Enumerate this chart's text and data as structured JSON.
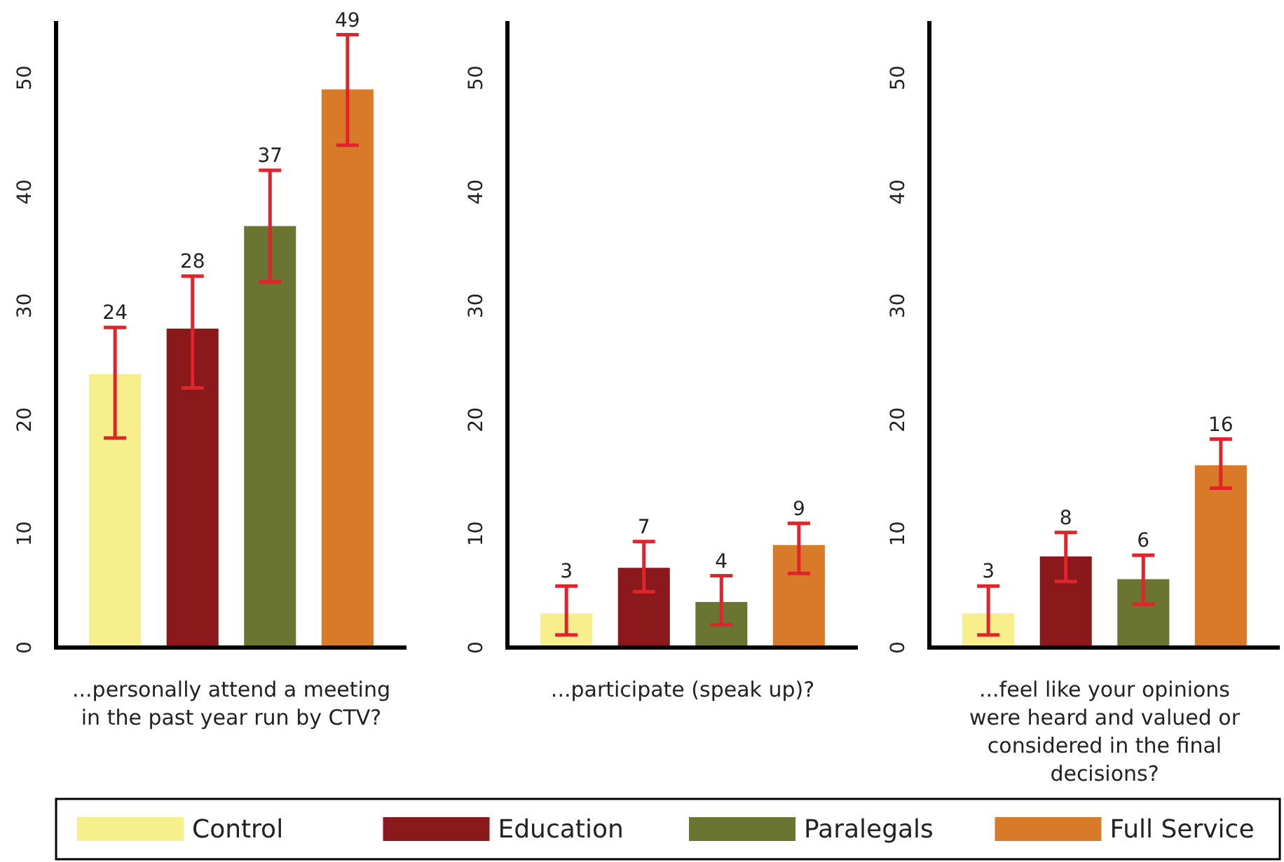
{
  "chart_data": [
    {
      "type": "bar",
      "xlabel": "...personally attend a meeting in the past year run by CTV?",
      "categories": [
        null
      ],
      "ylim": [
        0,
        55
      ],
      "yticks": [
        0,
        10,
        20,
        30,
        40,
        50
      ],
      "data_labels": true,
      "legend": "bottom",
      "series": [
        {
          "name": "Control",
          "color": "#f7ee8c",
          "values": [
            24
          ],
          "errors": [
            [
              18.4,
              28.1
            ]
          ]
        },
        {
          "name": "Education",
          "color": "#8b181b",
          "values": [
            28
          ],
          "errors": [
            [
              22.8,
              32.6
            ]
          ]
        },
        {
          "name": "Paralegals",
          "color": "#6b7532",
          "values": [
            37
          ],
          "errors": [
            [
              32.1,
              41.9
            ]
          ]
        },
        {
          "name": "Full Service",
          "color": "#d97a29",
          "values": [
            49
          ],
          "errors": [
            [
              44.1,
              53.8
            ]
          ]
        }
      ]
    },
    {
      "type": "bar",
      "xlabel": "...participate (speak up)?",
      "categories": [
        null
      ],
      "ylim": [
        0,
        55
      ],
      "yticks": [
        0,
        10,
        20,
        30,
        40,
        50
      ],
      "data_labels": true,
      "series": [
        {
          "color": "#f7ee8c",
          "values": [
            3
          ],
          "errors": [
            [
              1.1,
              5.4
            ]
          ]
        },
        {
          "color": "#8b181b",
          "values": [
            7
          ],
          "errors": [
            [
              4.9,
              9.3
            ]
          ]
        },
        {
          "color": "#6b7532",
          "values": [
            4
          ],
          "errors": [
            [
              2.0,
              6.3
            ]
          ]
        },
        {
          "color": "#d97a29",
          "values": [
            9
          ],
          "errors": [
            [
              6.5,
              10.9
            ]
          ]
        }
      ]
    },
    {
      "type": "bar",
      "xlabel": "...feel like your opinions were heard and valued or considered in the final decisions?",
      "categories": [
        null
      ],
      "ylim": [
        0,
        55
      ],
      "yticks": [
        0,
        10,
        20,
        30,
        40,
        50
      ],
      "data_labels": true,
      "series": [
        {
          "color": "#f7ee8c",
          "values": [
            3
          ],
          "errors": [
            [
              1.1,
              5.4
            ]
          ]
        },
        {
          "color": "#8b181b",
          "values": [
            8
          ],
          "errors": [
            [
              5.8,
              10.1
            ]
          ]
        },
        {
          "color": "#6b7532",
          "values": [
            6
          ],
          "errors": [
            [
              3.8,
              8.1
            ]
          ]
        },
        {
          "color": "#d97a29",
          "values": [
            16
          ],
          "errors": [
            [
              14.0,
              18.3
            ]
          ]
        }
      ]
    }
  ]
}
